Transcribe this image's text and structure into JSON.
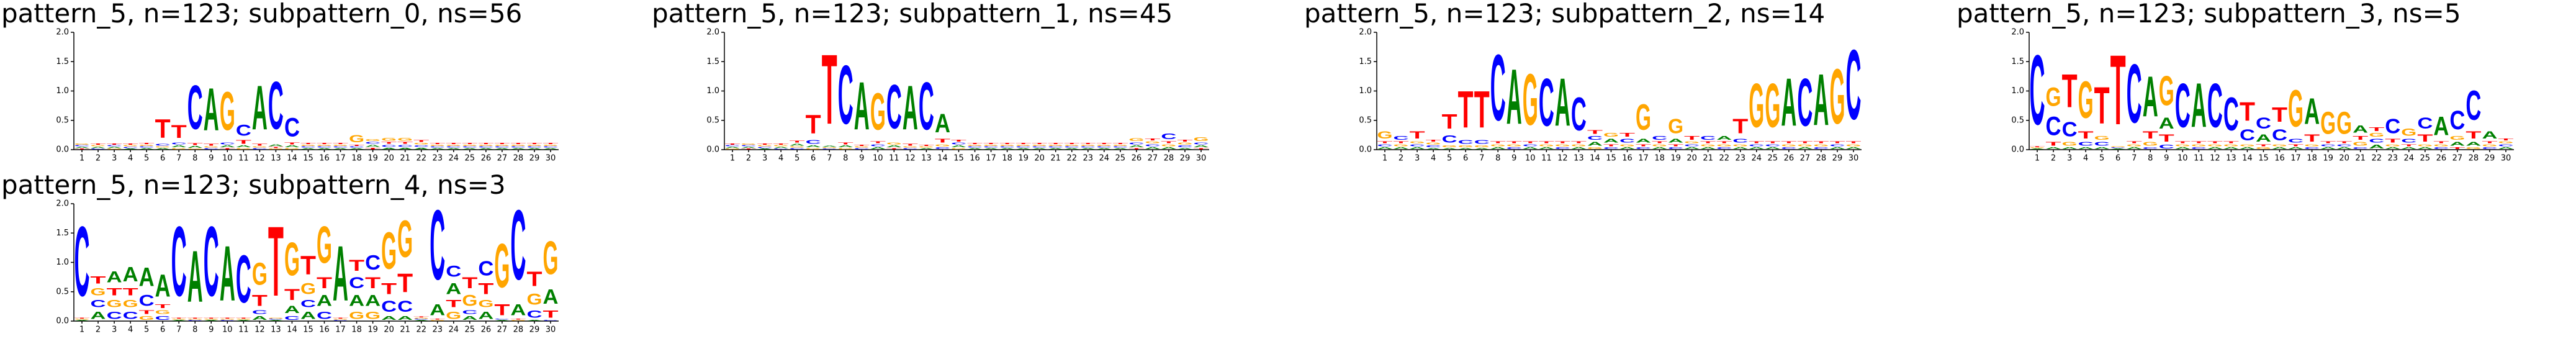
{
  "chart_data": [
    {
      "type": "logo",
      "title": "pattern_5, n=123; subpattern_0, ns=56",
      "categories": [
        1,
        2,
        3,
        4,
        5,
        6,
        7,
        8,
        9,
        10,
        11,
        12,
        13,
        14,
        15,
        16,
        17,
        18,
        19,
        20,
        21,
        22,
        23,
        24,
        25,
        26,
        27,
        28,
        29,
        30
      ],
      "ylim": [
        0,
        2
      ],
      "yticks": [
        {
          "value": 0,
          "label": "0.0"
        },
        {
          "value": 0.5,
          "label": "0.5"
        },
        {
          "value": 1,
          "label": "1.0"
        },
        {
          "value": 1.5,
          "label": "1.5"
        },
        {
          "value": 2,
          "label": "2.0"
        }
      ],
      "series": [
        {
          "name": "A",
          "color": "#008000",
          "values": [
            0.03,
            0.03,
            0.03,
            0.02,
            0.03,
            0.03,
            0.05,
            0.05,
            1.15,
            0.05,
            0.05,
            1.2,
            0.05,
            0.05,
            0.03,
            0.03,
            0.03,
            0.03,
            0.05,
            0.04,
            0.04,
            0.04,
            0.03,
            0.03,
            0.03,
            0.03,
            0.03,
            0.03,
            0.03,
            0.03
          ]
        },
        {
          "name": "C",
          "color": "#0000ff",
          "values": [
            0.03,
            0.02,
            0.03,
            0.03,
            0.03,
            0.05,
            0.05,
            1.2,
            0.03,
            0.05,
            0.3,
            0.03,
            1.3,
            0.5,
            0.03,
            0.03,
            0.03,
            0.03,
            0.05,
            0.05,
            0.05,
            0.04,
            0.03,
            0.03,
            0.03,
            0.03,
            0.03,
            0.03,
            0.03,
            0.03
          ]
        },
        {
          "name": "G",
          "color": "#ffa500",
          "values": [
            0.03,
            0.03,
            0.02,
            0.03,
            0.03,
            0.03,
            0.03,
            0.02,
            0.03,
            1.05,
            0.03,
            0.03,
            0.02,
            0.03,
            0.03,
            0.03,
            0.03,
            0.2,
            0.05,
            0.08,
            0.08,
            0.04,
            0.03,
            0.03,
            0.03,
            0.03,
            0.03,
            0.03,
            0.03,
            0.03
          ]
        },
        {
          "name": "T",
          "color": "#ff0000",
          "values": [
            0.02,
            0.03,
            0.03,
            0.03,
            0.03,
            0.5,
            0.35,
            0.05,
            0.05,
            0.03,
            0.1,
            0.05,
            0.03,
            0.05,
            0.03,
            0.03,
            0.03,
            0.03,
            0.04,
            0.05,
            0.05,
            0.05,
            0.03,
            0.03,
            0.03,
            0.03,
            0.03,
            0.03,
            0.03,
            0.03
          ]
        }
      ]
    },
    {
      "type": "logo",
      "title": "pattern_5, n=123; subpattern_1, ns=45",
      "categories": [
        1,
        2,
        3,
        4,
        5,
        6,
        7,
        8,
        9,
        10,
        11,
        12,
        13,
        14,
        15,
        16,
        17,
        18,
        19,
        20,
        21,
        22,
        23,
        24,
        25,
        26,
        27,
        28,
        29,
        30
      ],
      "ylim": [
        0,
        2
      ],
      "yticks": [
        {
          "value": 0,
          "label": "0.0"
        },
        {
          "value": 0.5,
          "label": "0.5"
        },
        {
          "value": 1,
          "label": "1.0"
        },
        {
          "value": 1.5,
          "label": "1.5"
        },
        {
          "value": 2,
          "label": "2.0"
        }
      ],
      "series": [
        {
          "name": "A",
          "color": "#008000",
          "values": [
            0.03,
            0.03,
            0.02,
            0.03,
            0.05,
            0.05,
            0.03,
            0.05,
            1.3,
            0.05,
            0.05,
            1.2,
            0.03,
            0.5,
            0.05,
            0.03,
            0.03,
            0.03,
            0.03,
            0.03,
            0.03,
            0.03,
            0.03,
            0.03,
            0.03,
            0.05,
            0.05,
            0.05,
            0.03,
            0.05
          ]
        },
        {
          "name": "C",
          "color": "#0000ff",
          "values": [
            0.03,
            0.03,
            0.03,
            0.02,
            0.03,
            0.1,
            0.02,
            1.6,
            0.03,
            0.05,
            1.2,
            0.03,
            1.3,
            0.05,
            0.05,
            0.03,
            0.03,
            0.03,
            0.03,
            0.03,
            0.03,
            0.03,
            0.03,
            0.03,
            0.03,
            0.05,
            0.05,
            0.15,
            0.05,
            0.05
          ]
        },
        {
          "name": "G",
          "color": "#ffa500",
          "values": [
            0.02,
            0.03,
            0.03,
            0.03,
            0.03,
            0.03,
            0.02,
            0.03,
            0.03,
            1.0,
            0.05,
            0.03,
            0.03,
            0.05,
            0.03,
            0.03,
            0.03,
            0.03,
            0.03,
            0.03,
            0.03,
            0.03,
            0.03,
            0.03,
            0.03,
            0.08,
            0.05,
            0.05,
            0.05,
            0.1
          ]
        },
        {
          "name": "T",
          "color": "#ff0000",
          "values": [
            0.03,
            0.02,
            0.03,
            0.03,
            0.05,
            0.5,
            1.9,
            0.05,
            0.03,
            0.05,
            0.03,
            0.05,
            0.03,
            0.1,
            0.05,
            0.03,
            0.03,
            0.03,
            0.03,
            0.03,
            0.03,
            0.03,
            0.03,
            0.03,
            0.03,
            0.03,
            0.05,
            0.05,
            0.05,
            0.03
          ]
        }
      ]
    },
    {
      "type": "logo",
      "title": "pattern_5, n=123; subpattern_2, ns=14",
      "categories": [
        1,
        2,
        3,
        4,
        5,
        6,
        7,
        8,
        9,
        10,
        11,
        12,
        13,
        14,
        15,
        16,
        17,
        18,
        19,
        20,
        21,
        22,
        23,
        24,
        25,
        26,
        27,
        28,
        29,
        30
      ],
      "ylim": [
        0,
        2
      ],
      "yticks": [
        {
          "value": 0,
          "label": "0.0"
        },
        {
          "value": 0.5,
          "label": "0.5"
        },
        {
          "value": 1,
          "label": "1.0"
        },
        {
          "value": 1.5,
          "label": "1.5"
        },
        {
          "value": 2,
          "label": "2.0"
        }
      ],
      "series": [
        {
          "name": "A",
          "color": "#008000",
          "values": [
            0.05,
            0.05,
            0.05,
            0.03,
            0.03,
            0.03,
            0.03,
            0.05,
            1.5,
            0.05,
            0.05,
            1.3,
            0.05,
            0.1,
            0.1,
            0.05,
            0.1,
            0.05,
            0.1,
            0.05,
            0.05,
            0.1,
            0.05,
            0.05,
            0.05,
            1.3,
            0.05,
            1.4,
            0.05,
            0.05
          ]
        },
        {
          "name": "C",
          "color": "#0000ff",
          "values": [
            0.05,
            0.1,
            0.05,
            0.05,
            0.2,
            0.1,
            0.1,
            1.8,
            0.05,
            0.05,
            1.3,
            0.05,
            0.9,
            0.1,
            0.05,
            0.1,
            0.05,
            0.1,
            0.05,
            0.05,
            0.1,
            0.05,
            0.1,
            0.05,
            0.05,
            0.05,
            1.3,
            0.05,
            0.05,
            1.9
          ]
        },
        {
          "name": "G",
          "color": "#ffa500",
          "values": [
            0.2,
            0.05,
            0.05,
            0.05,
            0.05,
            0.05,
            0.05,
            0.05,
            0.05,
            1.4,
            0.05,
            0.05,
            0.05,
            0.05,
            0.1,
            0.05,
            0.7,
            0.05,
            0.4,
            0.05,
            0.05,
            0.05,
            0.05,
            1.2,
            1.2,
            0.05,
            0.05,
            0.05,
            1.5,
            0.05
          ]
        },
        {
          "name": "T",
          "color": "#ff0000",
          "values": [
            0.05,
            0.05,
            0.2,
            0.05,
            0.4,
            1.0,
            1.0,
            0.05,
            0.05,
            0.05,
            0.05,
            0.05,
            0.05,
            0.1,
            0.05,
            0.1,
            0.05,
            0.05,
            0.05,
            0.1,
            0.05,
            0.05,
            0.4,
            0.05,
            0.05,
            0.05,
            0.05,
            0.05,
            0.05,
            0.05
          ]
        }
      ]
    },
    {
      "type": "logo",
      "title": "pattern_5, n=123; subpattern_3, ns=5",
      "categories": [
        1,
        2,
        3,
        4,
        5,
        6,
        7,
        8,
        9,
        10,
        11,
        12,
        13,
        14,
        15,
        16,
        17,
        18,
        19,
        20,
        21,
        22,
        23,
        24,
        25,
        26,
        27,
        28,
        29,
        30
      ],
      "ylim": [
        0,
        2
      ],
      "yticks": [
        {
          "value": 0,
          "label": "0.0"
        },
        {
          "value": 0.5,
          "label": "0.5"
        },
        {
          "value": 1,
          "label": "1.0"
        },
        {
          "value": 1.5,
          "label": "1.5"
        },
        {
          "value": 2,
          "label": "2.0"
        }
      ],
      "series": [
        {
          "name": "A",
          "color": "#008000",
          "values": [
            0.02,
            0.05,
            0.05,
            0.05,
            0.05,
            0.02,
            0.05,
            1.1,
            0.3,
            0.05,
            1.2,
            0.05,
            0.05,
            0.05,
            0.2,
            0.05,
            0.05,
            0.7,
            0.05,
            0.05,
            0.2,
            0.1,
            0.05,
            0.05,
            0.05,
            0.5,
            0.1,
            0.1,
            0.2,
            0.05
          ]
        },
        {
          "name": "C",
          "color": "#0000ff",
          "values": [
            1.9,
            0.5,
            0.4,
            0.1,
            0.1,
            0.02,
            1.6,
            0.05,
            0.1,
            1.2,
            0.05,
            1.2,
            0.9,
            0.3,
            0.3,
            0.3,
            0.1,
            0.05,
            0.05,
            0.05,
            0.05,
            0.1,
            0.4,
            0.1,
            0.3,
            0.05,
            0.5,
            0.8,
            0.05,
            0.05
          ]
        },
        {
          "name": "G",
          "color": "#ffa500",
          "values": [
            0.02,
            0.5,
            0.1,
            1.0,
            0.1,
            0.02,
            0.05,
            0.1,
            0.8,
            0.05,
            0.05,
            0.05,
            0.05,
            0.05,
            0.05,
            0.05,
            1.0,
            0.05,
            0.6,
            0.6,
            0.1,
            0.1,
            0.05,
            0.2,
            0.05,
            0.05,
            0.1,
            0.05,
            0.05,
            0.05
          ]
        },
        {
          "name": "T",
          "color": "#ff0000",
          "values": [
            0.02,
            0.1,
            0.9,
            0.2,
            1.0,
            1.9,
            0.05,
            0.2,
            0.2,
            0.05,
            0.05,
            0.05,
            0.05,
            0.5,
            0.05,
            0.4,
            0.05,
            0.2,
            0.05,
            0.05,
            0.1,
            0.1,
            0.1,
            0.05,
            0.2,
            0.05,
            0.05,
            0.2,
            0.05,
            0.05
          ]
        }
      ]
    },
    {
      "type": "logo",
      "title": "pattern_5, n=123; subpattern_4, ns=3",
      "categories": [
        1,
        2,
        3,
        4,
        5,
        6,
        7,
        8,
        9,
        10,
        11,
        12,
        13,
        14,
        15,
        16,
        17,
        18,
        19,
        20,
        21,
        22,
        23,
        24,
        25,
        26,
        27,
        28,
        29,
        30
      ],
      "ylim": [
        0,
        2
      ],
      "yticks": [
        {
          "value": 0,
          "label": "0.0"
        },
        {
          "value": 0.5,
          "label": "0.5"
        },
        {
          "value": 1,
          "label": "1.0"
        },
        {
          "value": 1.5,
          "label": "1.5"
        },
        {
          "value": 2,
          "label": "2.0"
        }
      ],
      "series": [
        {
          "name": "A",
          "color": "#008000",
          "values": [
            0.02,
            0.2,
            0.3,
            0.4,
            0.5,
            0.6,
            0.02,
            1.4,
            0.02,
            1.5,
            0.02,
            0.1,
            0.02,
            0.2,
            0.2,
            0.3,
            1.5,
            0.3,
            0.3,
            0.1,
            0.1,
            0.02,
            0.3,
            0.3,
            0.1,
            0.2,
            0.02,
            0.3,
            0.02,
            0.4
          ]
        },
        {
          "name": "C",
          "color": "#0000ff",
          "values": [
            1.9,
            0.2,
            0.2,
            0.2,
            0.3,
            0.1,
            1.9,
            0.02,
            1.9,
            0.02,
            1.3,
            0.1,
            0.02,
            0.1,
            0.2,
            0.2,
            0.02,
            0.3,
            0.4,
            0.3,
            0.3,
            0.02,
            1.9,
            0.3,
            0.1,
            0.4,
            0.02,
            1.9,
            0.2,
            0.02
          ]
        },
        {
          "name": "G",
          "color": "#ffa500",
          "values": [
            0.02,
            0.2,
            0.2,
            0.2,
            0.1,
            0.1,
            0.02,
            0.02,
            0.02,
            0.02,
            0.02,
            0.6,
            0.02,
            0.9,
            0.3,
            1.0,
            0.02,
            0.2,
            0.2,
            1.0,
            1.0,
            0.02,
            0.02,
            0.2,
            0.3,
            0.2,
            1.2,
            0.02,
            0.3,
            0.9
          ]
        },
        {
          "name": "T",
          "color": "#ff0000",
          "values": [
            0.02,
            0.2,
            0.2,
            0.2,
            0.1,
            0.1,
            0.02,
            0.02,
            0.02,
            0.02,
            0.02,
            0.3,
            1.9,
            0.3,
            0.5,
            0.3,
            0.02,
            0.3,
            0.3,
            0.3,
            0.5,
            0.02,
            0.02,
            0.2,
            0.3,
            0.3,
            0.3,
            0.02,
            0.4,
            0.2
          ]
        }
      ]
    }
  ]
}
